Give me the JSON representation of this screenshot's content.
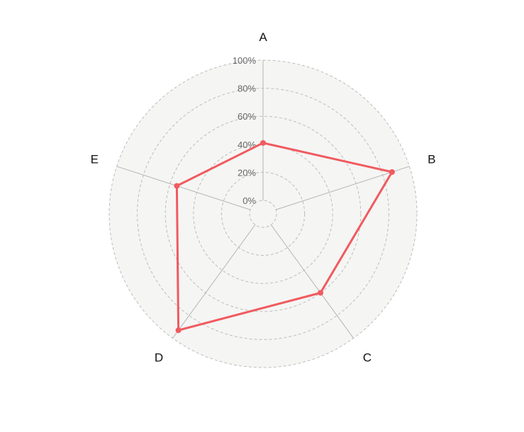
{
  "chart_data": {
    "type": "radar",
    "categories": [
      "A",
      "B",
      "C",
      "D",
      "E"
    ],
    "series": [
      {
        "values": [
          41,
          87,
          60,
          93,
          55
        ]
      }
    ],
    "radial_ticks": [
      "0%",
      "20%",
      "40%",
      "60%",
      "80%",
      "100%"
    ],
    "rlim": [
      0,
      100
    ],
    "grid": true,
    "colors": {
      "series": "#f05a5f",
      "background": "#f5f5f4",
      "grid": "#bdbdbd",
      "spoke": "#b5b5b5"
    }
  }
}
